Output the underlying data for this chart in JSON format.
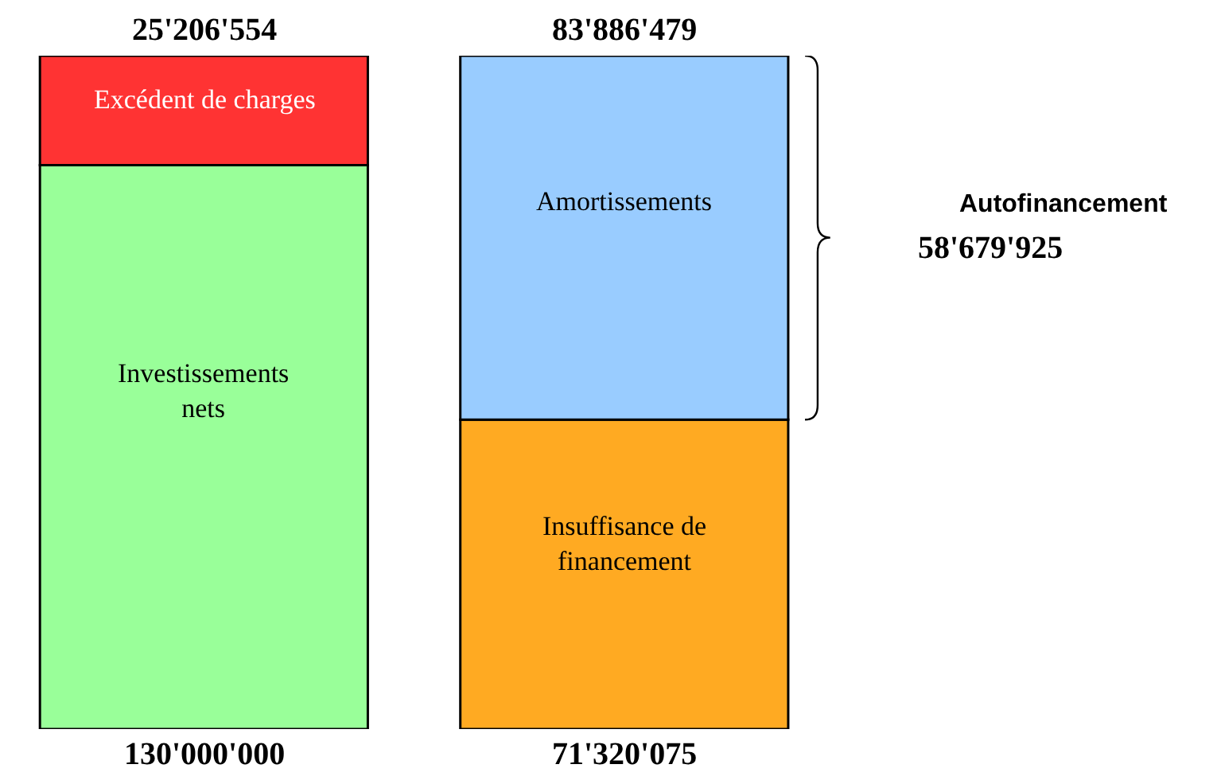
{
  "chart_data": {
    "type": "bar",
    "stacked": true,
    "categories": [
      null,
      null
    ],
    "series": [
      {
        "name": "Investissements nets",
        "color": "#99ff99",
        "values": [
          130000000,
          null
        ],
        "value_labels": [
          "130'000'000",
          null
        ]
      },
      {
        "name": "Excédent de charges",
        "color": "#ff3333",
        "values": [
          25206554,
          null
        ],
        "value_labels": [
          "25'206'554",
          null
        ]
      },
      {
        "name": "Insuffisance de financement",
        "color": "#ffaa22",
        "values": [
          null,
          71320075
        ],
        "value_labels": [
          null,
          "71'320'075"
        ]
      },
      {
        "name": "Amortissements",
        "color": "#99ccff",
        "values": [
          null,
          83886479
        ],
        "value_labels": [
          null,
          "83'886'479"
        ]
      }
    ],
    "annotations": [
      "Autofinancement",
      "58'679'925"
    ],
    "legend": false
  }
}
